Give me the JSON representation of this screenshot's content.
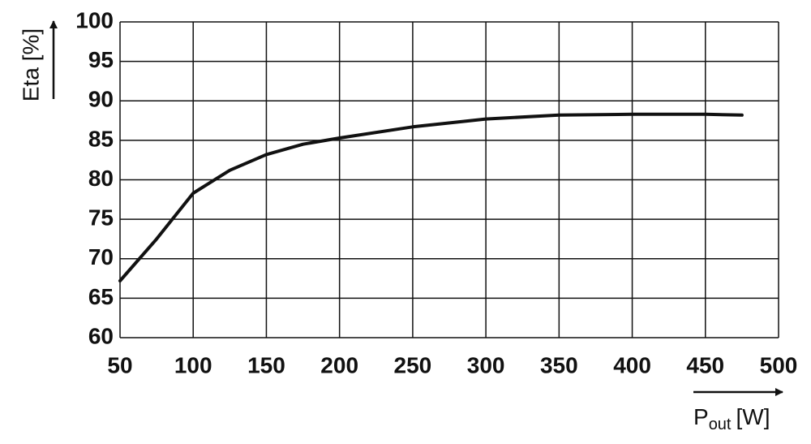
{
  "chart_data": {
    "type": "line",
    "y_label": "Eta [%]",
    "x_label": {
      "main": "P",
      "sub": "out",
      "unit": "[W]"
    },
    "x": [
      50,
      75,
      100,
      125,
      150,
      175,
      200,
      250,
      300,
      350,
      400,
      450,
      475
    ],
    "values": [
      67.2,
      72.5,
      78.3,
      81.2,
      83.2,
      84.5,
      85.3,
      86.7,
      87.7,
      88.2,
      88.3,
      88.3,
      88.2
    ],
    "color": "#111111",
    "xlim": [
      50,
      500
    ],
    "xticks": [
      50,
      100,
      150,
      200,
      250,
      300,
      350,
      400,
      450,
      500
    ],
    "ylim": [
      60,
      100
    ],
    "yticks": [
      60,
      65,
      70,
      75,
      80,
      85,
      90,
      95,
      100
    ],
    "grid": true
  }
}
